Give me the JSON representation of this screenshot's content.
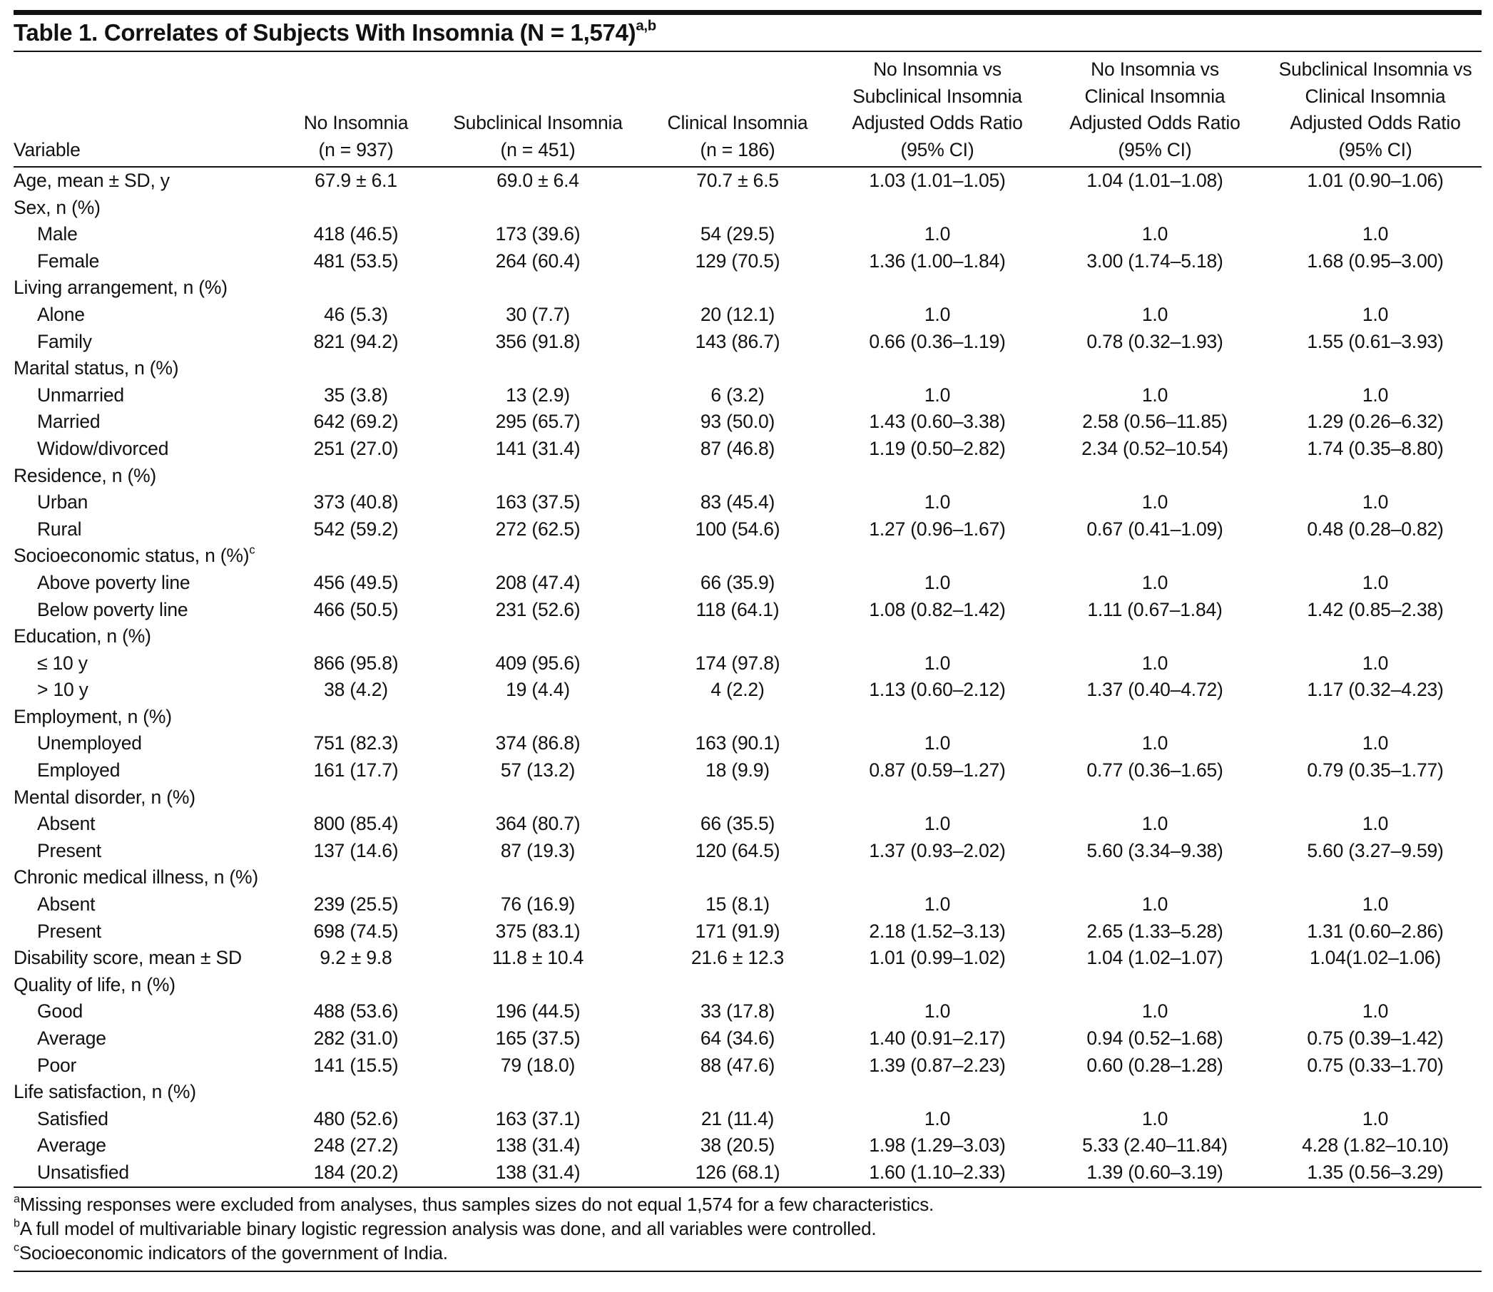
{
  "table": {
    "title": "Table 1. Correlates of Subjects With Insomnia (N = 1,574)",
    "title_sup": "a,b",
    "header": [
      [
        "Variable"
      ],
      [
        "No Insomnia",
        "(n = 937)"
      ],
      [
        "Subclinical Insomnia",
        "(n = 451)"
      ],
      [
        "Clinical Insomnia",
        "(n = 186)"
      ],
      [
        "No Insomnia vs",
        "Subclinical Insomnia",
        "Adjusted Odds Ratio",
        "(95% CI)"
      ],
      [
        "No Insomnia vs",
        "Clinical Insomnia",
        "Adjusted Odds Ratio",
        "(95% CI)"
      ],
      [
        "Subclinical Insomnia vs",
        "Clinical Insomnia",
        "Adjusted Odds Ratio",
        "(95% CI)"
      ]
    ],
    "groups": [
      {
        "label": "Age, mean ± SD, y",
        "values": [
          "67.9 ± 6.1",
          "69.0 ± 6.4",
          "70.7 ± 6.5",
          "1.03 (1.01–1.05)",
          "1.04 (1.01–1.08)",
          "1.01 (0.90–1.06)"
        ]
      },
      {
        "label": "Sex, n (%)",
        "rows": [
          {
            "label": "Male",
            "values": [
              "418 (46.5)",
              "173 (39.6)",
              "54 (29.5)",
              "1.0",
              "1.0",
              "1.0"
            ]
          },
          {
            "label": "Female",
            "values": [
              "481 (53.5)",
              "264 (60.4)",
              "129 (70.5)",
              "1.36 (1.00–1.84)",
              "3.00 (1.74–5.18)",
              "1.68 (0.95–3.00)"
            ]
          }
        ]
      },
      {
        "label": "Living arrangement, n (%)",
        "rows": [
          {
            "label": "Alone",
            "values": [
              "46 (5.3)",
              "30 (7.7)",
              "20 (12.1)",
              "1.0",
              "1.0",
              "1.0"
            ]
          },
          {
            "label": "Family",
            "values": [
              "821 (94.2)",
              "356 (91.8)",
              "143 (86.7)",
              "0.66 (0.36–1.19)",
              "0.78 (0.32–1.93)",
              "1.55 (0.61–3.93)"
            ]
          }
        ]
      },
      {
        "label": "Marital status, n (%)",
        "rows": [
          {
            "label": "Unmarried",
            "values": [
              "35 (3.8)",
              "13 (2.9)",
              "6 (3.2)",
              "1.0",
              "1.0",
              "1.0"
            ]
          },
          {
            "label": "Married",
            "values": [
              "642 (69.2)",
              "295 (65.7)",
              "93 (50.0)",
              "1.43 (0.60–3.38)",
              "2.58 (0.56–11.85)",
              "1.29 (0.26–6.32)"
            ]
          },
          {
            "label": "Widow/divorced",
            "values": [
              "251 (27.0)",
              "141 (31.4)",
              "87 (46.8)",
              "1.19 (0.50–2.82)",
              "2.34 (0.52–10.54)",
              "1.74 (0.35–8.80)"
            ]
          }
        ]
      },
      {
        "label": "Residence, n (%)",
        "rows": [
          {
            "label": "Urban",
            "values": [
              "373 (40.8)",
              "163 (37.5)",
              "83 (45.4)",
              "1.0",
              "1.0",
              "1.0"
            ]
          },
          {
            "label": "Rural",
            "values": [
              "542 (59.2)",
              "272 (62.5)",
              "100 (54.6)",
              "1.27 (0.96–1.67)",
              "0.67 (0.41–1.09)",
              "0.48 (0.28–0.82)"
            ]
          }
        ]
      },
      {
        "label": "Socioeconomic status, n (%)",
        "label_sup": "c",
        "rows": [
          {
            "label": "Above poverty line",
            "values": [
              "456 (49.5)",
              "208 (47.4)",
              "66 (35.9)",
              "1.0",
              "1.0",
              "1.0"
            ]
          },
          {
            "label": "Below poverty line",
            "values": [
              "466 (50.5)",
              "231 (52.6)",
              "118 (64.1)",
              "1.08 (0.82–1.42)",
              "1.11 (0.67–1.84)",
              "1.42 (0.85–2.38)"
            ]
          }
        ]
      },
      {
        "label": "Education, n (%)",
        "rows": [
          {
            "label": "≤ 10 y",
            "values": [
              "866 (95.8)",
              "409 (95.6)",
              "174 (97.8)",
              "1.0",
              "1.0",
              "1.0"
            ]
          },
          {
            "label": "> 10 y",
            "values": [
              "38 (4.2)",
              "19 (4.4)",
              "4 (2.2)",
              "1.13 (0.60–2.12)",
              "1.37 (0.40–4.72)",
              "1.17 (0.32–4.23)"
            ]
          }
        ]
      },
      {
        "label": "Employment, n (%)",
        "rows": [
          {
            "label": "Unemployed",
            "values": [
              "751 (82.3)",
              "374 (86.8)",
              "163 (90.1)",
              "1.0",
              "1.0",
              "1.0"
            ]
          },
          {
            "label": "Employed",
            "values": [
              "161 (17.7)",
              "57 (13.2)",
              "18 (9.9)",
              "0.87 (0.59–1.27)",
              "0.77 (0.36–1.65)",
              "0.79 (0.35–1.77)"
            ]
          }
        ]
      },
      {
        "label": "Mental disorder, n (%)",
        "rows": [
          {
            "label": "Absent",
            "values": [
              "800 (85.4)",
              "364 (80.7)",
              "66 (35.5)",
              "1.0",
              "1.0",
              "1.0"
            ]
          },
          {
            "label": "Present",
            "values": [
              "137 (14.6)",
              "87 (19.3)",
              "120 (64.5)",
              "1.37 (0.93–2.02)",
              "5.60 (3.34–9.38)",
              "5.60 (3.27–9.59)"
            ]
          }
        ]
      },
      {
        "label": "Chronic medical illness, n (%)",
        "rows": [
          {
            "label": "Absent",
            "values": [
              "239 (25.5)",
              "76 (16.9)",
              "15 (8.1)",
              "1.0",
              "1.0",
              "1.0"
            ]
          },
          {
            "label": "Present",
            "values": [
              "698 (74.5)",
              "375 (83.1)",
              "171 (91.9)",
              "2.18 (1.52–3.13)",
              "2.65 (1.33–5.28)",
              "1.31 (0.60–2.86)"
            ]
          }
        ]
      },
      {
        "label": "Disability score, mean ± SD",
        "values": [
          "9.2 ± 9.8",
          "11.8 ± 10.4",
          "21.6 ± 12.3",
          "1.01 (0.99–1.02)",
          "1.04 (1.02–1.07)",
          "1.04(1.02–1.06)"
        ]
      },
      {
        "label": "Quality of life, n (%)",
        "rows": [
          {
            "label": "Good",
            "values": [
              "488 (53.6)",
              "196 (44.5)",
              "33 (17.8)",
              "1.0",
              "1.0",
              "1.0"
            ]
          },
          {
            "label": "Average",
            "values": [
              "282 (31.0)",
              "165 (37.5)",
              "64 (34.6)",
              "1.40 (0.91–2.17)",
              "0.94 (0.52–1.68)",
              "0.75 (0.39–1.42)"
            ]
          },
          {
            "label": "Poor",
            "values": [
              "141 (15.5)",
              "79 (18.0)",
              "88 (47.6)",
              "1.39 (0.87–2.23)",
              "0.60 (0.28–1.28)",
              "0.75 (0.33–1.70)"
            ]
          }
        ]
      },
      {
        "label": "Life satisfaction, n (%)",
        "rows": [
          {
            "label": "Satisfied",
            "values": [
              "480 (52.6)",
              "163 (37.1)",
              "21 (11.4)",
              "1.0",
              "1.0",
              "1.0"
            ]
          },
          {
            "label": "Average",
            "values": [
              "248 (27.2)",
              "138 (31.4)",
              "38 (20.5)",
              "1.98 (1.29–3.03)",
              "5.33 (2.40–11.84)",
              "4.28 (1.82–10.10)"
            ]
          },
          {
            "label": "Unsatisfied",
            "values": [
              "184 (20.2)",
              "138 (31.4)",
              "126 (68.1)",
              "1.60 (1.10–2.33)",
              "1.39 (0.60–3.19)",
              "1.35 (0.56–3.29)"
            ]
          }
        ]
      }
    ],
    "footnotes": [
      {
        "mark": "a",
        "text": "Missing responses were excluded from analyses, thus samples sizes do not equal 1,574 for a few characteristics."
      },
      {
        "mark": "b",
        "text": "A full model of multivariable binary logistic regression analysis was done, and all variables were controlled."
      },
      {
        "mark": "c",
        "text": "Socioeconomic indicators of the government of India."
      }
    ]
  }
}
